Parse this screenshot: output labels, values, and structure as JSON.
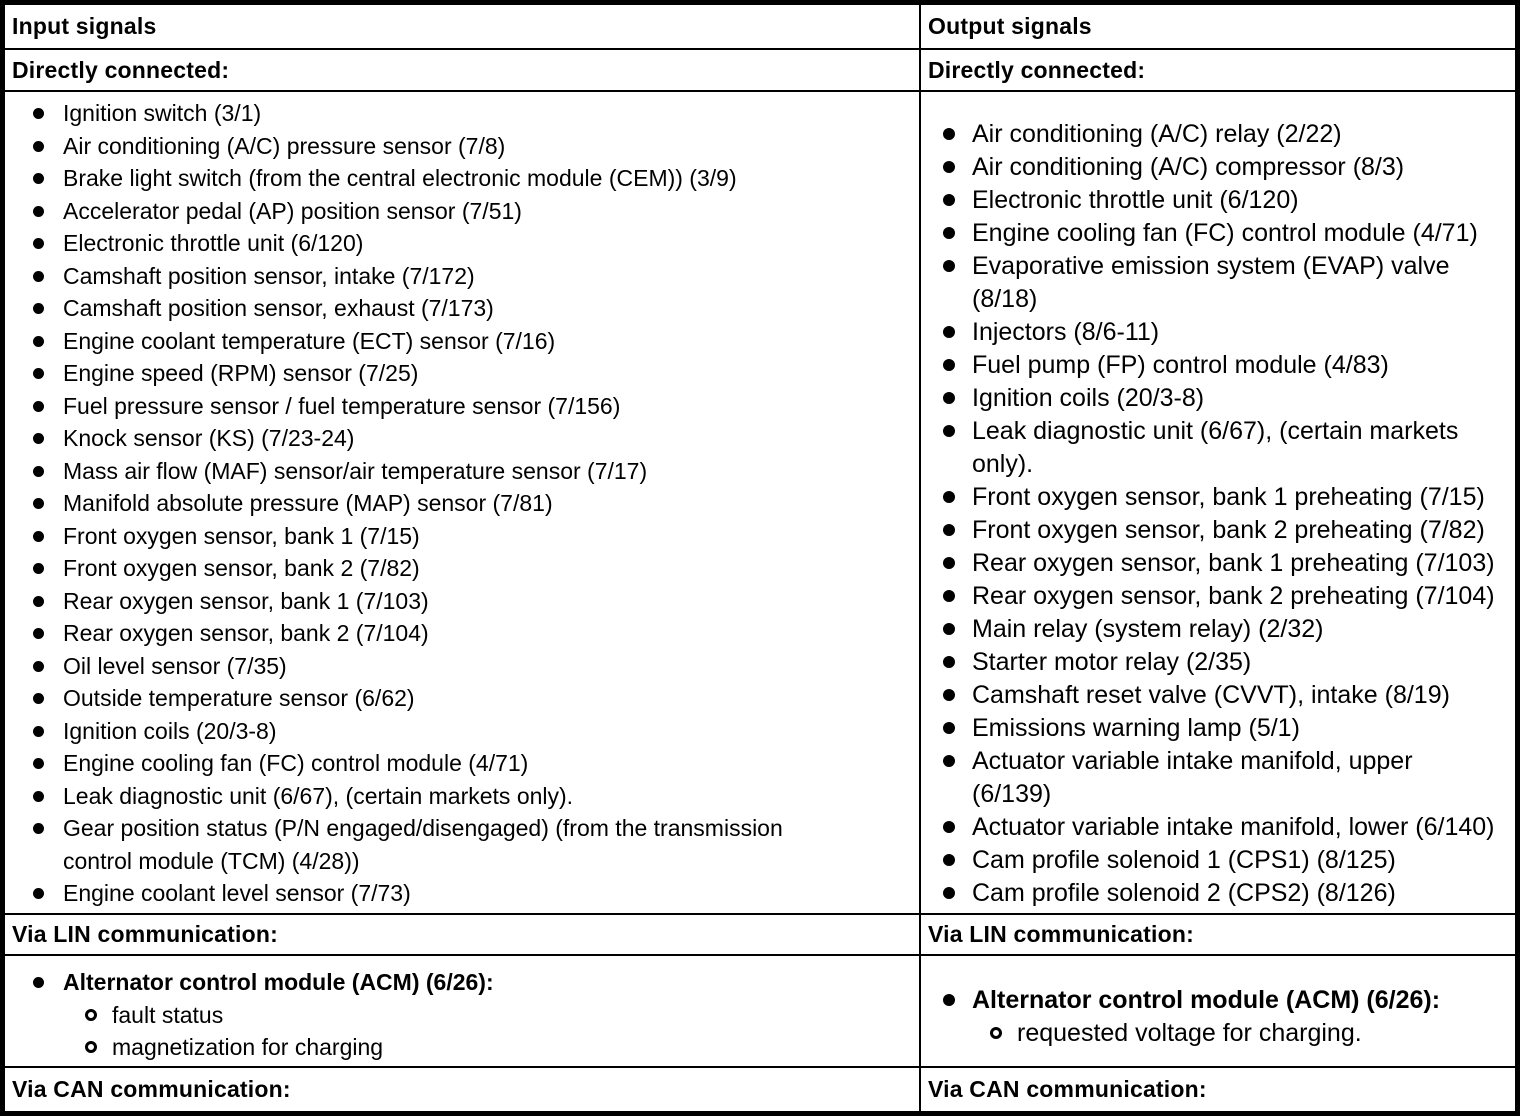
{
  "colors": {
    "ink": "#000000",
    "paper": "#ffffff"
  },
  "input": {
    "header": "Input signals",
    "directly_connected_title": "Directly connected:",
    "directly_connected": [
      "Ignition switch (3/1)",
      "Air conditioning (A/C) pressure sensor (7/8)",
      "Brake light switch (from the central electronic module (CEM)) (3/9)",
      "Accelerator pedal (AP) position sensor (7/51)",
      "Electronic throttle unit (6/120)",
      "Camshaft position sensor, intake (7/172)",
      "Camshaft position sensor, exhaust (7/173)",
      "Engine coolant temperature (ECT) sensor (7/16)",
      "Engine speed (RPM) sensor (7/25)",
      "Fuel pressure sensor / fuel temperature sensor (7/156)",
      "Knock sensor (KS) (7/23-24)",
      "Mass air flow (MAF) sensor/air temperature sensor (7/17)",
      "Manifold absolute pressure (MAP) sensor (7/81)",
      "Front oxygen sensor, bank 1 (7/15)",
      "Front oxygen sensor, bank 2 (7/82)",
      "Rear oxygen sensor, bank 1 (7/103)",
      "Rear oxygen sensor, bank 2 (7/104)",
      "Oil level sensor (7/35)",
      "Outside temperature sensor (6/62)",
      "Ignition coils (20/3-8)",
      "Engine cooling fan (FC) control module (4/71)",
      "Leak diagnostic unit (6/67), (certain markets only).",
      "Gear position status (P/N engaged/disengaged) (from the transmission\ncontrol module (TCM) (4/28))",
      "Engine coolant level sensor (7/73)"
    ],
    "via_lin_title": "Via LIN communication:",
    "via_lin": [
      {
        "label": "Alternator control module (ACM) (6/26):",
        "bold": true,
        "subitems": [
          "fault status",
          "magnetization for charging"
        ]
      }
    ],
    "via_can_title": "Via CAN communication:"
  },
  "output": {
    "header": "Output signals",
    "directly_connected_title": "Directly connected:",
    "directly_connected": [
      "Air conditioning (A/C) relay (2/22)",
      "Air conditioning (A/C) compressor (8/3)",
      "Electronic throttle unit (6/120)",
      "Engine cooling fan (FC) control module (4/71)",
      "Evaporative emission system (EVAP) valve\n(8/18)",
      "Injectors (8/6-11)",
      "Fuel pump (FP) control module (4/83)",
      "Ignition coils (20/3-8)",
      "Leak diagnostic unit (6/67), (certain markets\nonly).",
      "Front oxygen sensor, bank 1 preheating (7/15)",
      "Front oxygen sensor, bank 2 preheating (7/82)",
      "Rear oxygen sensor, bank 1 preheating (7/103)",
      "Rear oxygen sensor, bank 2 preheating (7/104)",
      "Main relay (system relay) (2/32)",
      "Starter motor relay (2/35)",
      "Camshaft reset valve (CVVT), intake (8/19)",
      "Emissions warning lamp (5/1)",
      "Actuator variable intake manifold, upper\n(6/139)",
      "Actuator variable intake manifold, lower (6/140)",
      "Cam profile solenoid 1 (CPS1) (8/125)",
      "Cam profile solenoid 2 (CPS2) (8/126)"
    ],
    "via_lin_title": "Via LIN communication:",
    "via_lin": [
      {
        "label": "Alternator control module (ACM) (6/26):",
        "bold": true,
        "subitems": [
          "requested voltage for charging."
        ]
      }
    ],
    "via_can_title": "Via CAN communication:"
  }
}
